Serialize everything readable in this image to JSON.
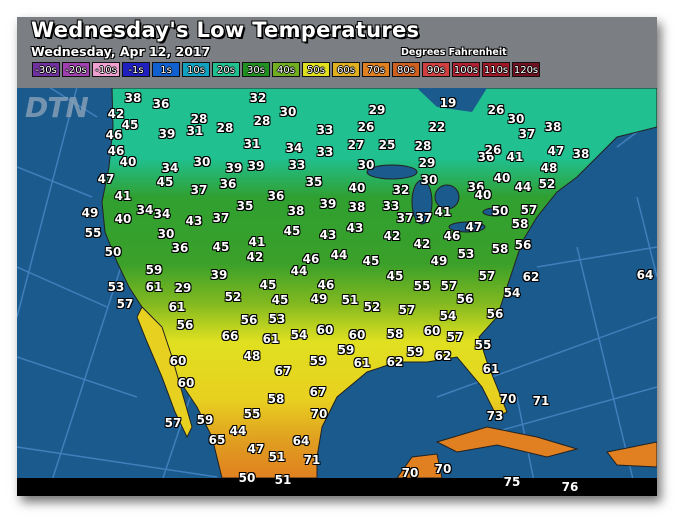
{
  "header": {
    "title": "Wednesday's Low Temperatures",
    "subtitle": "Wednesday, Apr 12, 2017",
    "units": "Degrees Fahrenheit",
    "logo": "DTN"
  },
  "legend": [
    {
      "label": "-30s",
      "color": "#7030a0"
    },
    {
      "label": "-20s",
      "color": "#a040b0"
    },
    {
      "label": "-10s",
      "color": "#f0a0d0"
    },
    {
      "label": "-1s",
      "color": "#2020c0"
    },
    {
      "label": "1s",
      "color": "#1060d0"
    },
    {
      "label": "10s",
      "color": "#10a0c0"
    },
    {
      "label": "20s",
      "color": "#20c090"
    },
    {
      "label": "30s",
      "color": "#209020"
    },
    {
      "label": "40s",
      "color": "#70b020"
    },
    {
      "label": "50s",
      "color": "#e0e020"
    },
    {
      "label": "60s",
      "color": "#e0b020"
    },
    {
      "label": "70s",
      "color": "#e08020"
    },
    {
      "label": "80s",
      "color": "#d06020"
    },
    {
      "label": "90s",
      "color": "#d04040"
    },
    {
      "label": "100s",
      "color": "#b02030"
    },
    {
      "label": "110s",
      "color": "#a01828"
    },
    {
      "label": "120s",
      "color": "#701020"
    }
  ],
  "colors": {
    "ocean": "#1a5a8c",
    "header": "#7b7f84",
    "land_cold": "#20c090",
    "land_cool": "#209020",
    "land_mild": "#e0e020",
    "land_warm": "#e08020"
  },
  "temperatures": [
    "38",
    "36",
    "32",
    "30",
    "19",
    "29",
    "26",
    "30",
    "42",
    "45",
    "28",
    "28",
    "31",
    "28",
    "39",
    "46",
    "33",
    "26",
    "22",
    "37",
    "38",
    "46",
    "31",
    "34",
    "33",
    "27",
    "25",
    "28",
    "36",
    "26",
    "41",
    "47",
    "38",
    "40",
    "30",
    "39",
    "39",
    "33",
    "30",
    "29",
    "48",
    "47",
    "34",
    "45",
    "37",
    "36",
    "35",
    "40",
    "32",
    "30",
    "36",
    "40",
    "40",
    "44",
    "52",
    "41",
    "36",
    "39",
    "38",
    "33",
    "37",
    "37",
    "41",
    "50",
    "57",
    "49",
    "34",
    "34",
    "40",
    "43",
    "37",
    "35",
    "38",
    "58",
    "55",
    "30",
    "45",
    "43",
    "43",
    "42",
    "42",
    "46",
    "47",
    "36",
    "45",
    "41",
    "42",
    "46",
    "44",
    "45",
    "53",
    "58",
    "56",
    "50",
    "44",
    "49",
    "59",
    "39",
    "46",
    "45",
    "57",
    "62",
    "64",
    "53",
    "61",
    "29",
    "45",
    "55",
    "57",
    "54",
    "57",
    "61",
    "52",
    "45",
    "49",
    "51",
    "52",
    "56",
    "57",
    "56",
    "56",
    "53",
    "60",
    "54",
    "54",
    "56",
    "66",
    "61",
    "60",
    "58",
    "60",
    "57",
    "48",
    "59",
    "55",
    "59",
    "61",
    "62",
    "59",
    "62",
    "60",
    "67",
    "61",
    "60",
    "67",
    "58",
    "70",
    "70",
    "71",
    "73",
    "55",
    "57",
    "59",
    "44",
    "65",
    "64",
    "47",
    "51",
    "71",
    "70",
    "70",
    "50",
    "51",
    "75",
    "76"
  ]
}
